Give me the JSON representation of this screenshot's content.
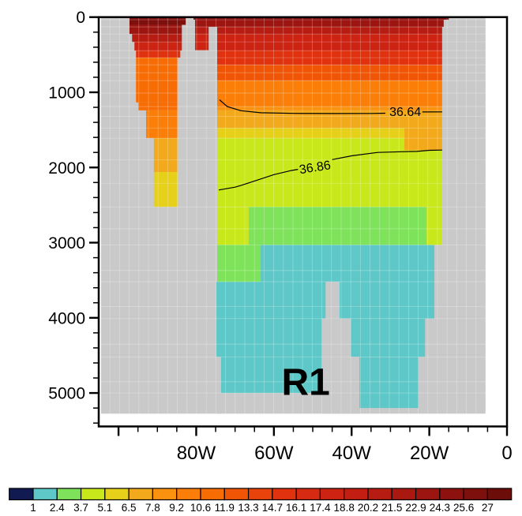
{
  "figure": {
    "background": "#ffffff",
    "mask_color": "#c9c9c9"
  },
  "chart_data": {
    "type": "heatmap",
    "title": "",
    "annotation": {
      "text": "R1",
      "lon_w": 51.8,
      "depth_m": 4890
    },
    "x_axis": {
      "unit": "longitude",
      "tick_labels": [
        "80W",
        "60W",
        "40W",
        "20W",
        "0"
      ],
      "tick_lons_w": [
        80,
        60,
        40,
        20,
        0
      ],
      "minor_step_deg": 5,
      "frame_range_w": [
        105.1,
        0
      ]
    },
    "y_axis": {
      "unit": "depth_m",
      "tick_labels": [
        "0",
        "1000",
        "2000",
        "3000",
        "4000",
        "5000"
      ],
      "tick_values": [
        0,
        1000,
        2000,
        3000,
        4000,
        5000
      ],
      "minor_step_m": 200,
      "frame_range_m": [
        0,
        5445
      ]
    },
    "colorbar": {
      "tick_labels": [
        "1",
        "2.4",
        "3.7",
        "5.1",
        "6.5",
        "7.8",
        "9.2",
        "10.6",
        "11.9",
        "13.3",
        "14.7",
        "16.1",
        "17.4",
        "18.8",
        "20.2",
        "21.5",
        "22.9",
        "24.3",
        "25.6",
        "27"
      ],
      "colors": [
        "#121a52",
        "#5ec8c8",
        "#7ee35a",
        "#c9e81c",
        "#e6d01a",
        "#f2a91c",
        "#fa9210",
        "#fa7e08",
        "#f76c03",
        "#f05505",
        "#e8430b",
        "#e0320e",
        "#d62a12",
        "#cc2313",
        "#c21f12",
        "#b61c11",
        "#aa1911",
        "#9c1510",
        "#8d120f",
        "#7d100d",
        "#6d0d0a"
      ]
    },
    "field": {
      "extent": {
        "lon_w": [
          104.5,
          5.5
        ],
        "depth_m": [
          0,
          5275
        ]
      },
      "cells": [
        [
          97.2,
          82.7,
          0,
          103,
          19
        ],
        [
          97.2,
          83.7,
          103,
          225,
          17
        ],
        [
          96.5,
          83.7,
          225,
          330,
          15
        ],
        [
          95.9,
          83.7,
          330,
          445,
          13
        ],
        [
          95.5,
          84.1,
          445,
          540,
          11
        ],
        [
          95.5,
          84.8,
          540,
          1135,
          8
        ],
        [
          94.9,
          84.8,
          1135,
          1240,
          8
        ],
        [
          92.9,
          84.8,
          1240,
          1610,
          7
        ],
        [
          90.9,
          84.8,
          1610,
          2060,
          5
        ],
        [
          90.9,
          84.8,
          2060,
          2525,
          4
        ],
        [
          80.3,
          76.8,
          130,
          225,
          15
        ],
        [
          80.3,
          76.8,
          225,
          440,
          13
        ],
        [
          80.7,
          15.0,
          0,
          35,
          19
        ],
        [
          80.3,
          16.3,
          35,
          130,
          17
        ],
        [
          74.6,
          16.7,
          130,
          225,
          15
        ],
        [
          74.6,
          16.7,
          225,
          445,
          13
        ],
        [
          74.6,
          16.7,
          445,
          635,
          11
        ],
        [
          74.6,
          16.7,
          635,
          845,
          9
        ],
        [
          74.6,
          16.7,
          845,
          1190,
          7
        ],
        [
          74.6,
          16.7,
          1190,
          1240,
          6
        ],
        [
          74.6,
          16.7,
          1240,
          1475,
          5
        ],
        [
          74.6,
          16.7,
          1475,
          1610,
          4
        ],
        [
          74.6,
          16.7,
          1610,
          2525,
          3
        ],
        [
          26.4,
          16.7,
          1475,
          1770,
          5
        ],
        [
          73.0,
          18.7,
          3030,
          4010,
          1
        ],
        [
          74.8,
          47.6,
          3520,
          5000,
          1
        ],
        [
          40.2,
          21.1,
          4010,
          4520,
          1
        ],
        [
          38.0,
          22.8,
          4520,
          5200,
          1
        ],
        [
          66.5,
          20.7,
          2525,
          3030,
          2
        ],
        [
          74.6,
          66.5,
          2525,
          3030,
          3
        ],
        [
          74.6,
          63.4,
          3030,
          3520,
          2
        ],
        [
          20.7,
          16.7,
          2525,
          3030,
          3
        ]
      ],
      "mask_overlays": [
        [
          46.7,
          43.1,
          3520,
          4010
        ],
        [
          47.6,
          40.2,
          4010,
          4520
        ],
        [
          47.6,
          38.0,
          4520,
          5275
        ],
        [
          74.9,
          73.6,
          4520,
          5275
        ]
      ]
    },
    "grid": {
      "v_step_deg": 2.48,
      "v_start_lon_w": 5.5,
      "h_levels_m": [
        35,
        130,
        225,
        330,
        445,
        540,
        635,
        740,
        845,
        1010,
        1190,
        1320,
        1475,
        1610,
        1900,
        2210,
        2525,
        2815,
        3030,
        3370,
        3520,
        3850,
        4010,
        4350,
        4520,
        4850,
        5000
      ],
      "color": "rgba(255,255,255,0.30)"
    },
    "contours": [
      {
        "label": "36.64",
        "label_lon_w": 26.2,
        "label_depth_m": 1273,
        "label_rotation_deg": 0,
        "segments": [
          [
            [
              74.0,
              1100
            ],
            [
              72.0,
              1190
            ],
            [
              68.5,
              1245
            ],
            [
              63.4,
              1272
            ],
            [
              55.0,
              1280
            ],
            [
              45.0,
              1283
            ],
            [
              35.0,
              1281
            ],
            [
              31.3,
              1278
            ]
          ],
          [
            [
              21.8,
              1262
            ],
            [
              16.7,
              1260
            ]
          ]
        ]
      },
      {
        "label": "36.86",
        "label_lon_w": 49.4,
        "label_depth_m": 2008,
        "label_rotation_deg": -9,
        "segments": [
          [
            [
              74.2,
              2300
            ],
            [
              70.0,
              2262
            ],
            [
              68.5,
              2240
            ],
            [
              65.0,
              2180
            ],
            [
              60.0,
              2095
            ],
            [
              55.5,
              2040
            ],
            [
              53.8,
              2025
            ]
          ],
          [
            [
              45.0,
              1895
            ],
            [
              40.0,
              1845
            ],
            [
              33.3,
              1800
            ],
            [
              27.0,
              1790
            ],
            [
              23.2,
              1786
            ],
            [
              20.0,
              1772
            ],
            [
              16.7,
              1768
            ]
          ]
        ]
      }
    ]
  }
}
